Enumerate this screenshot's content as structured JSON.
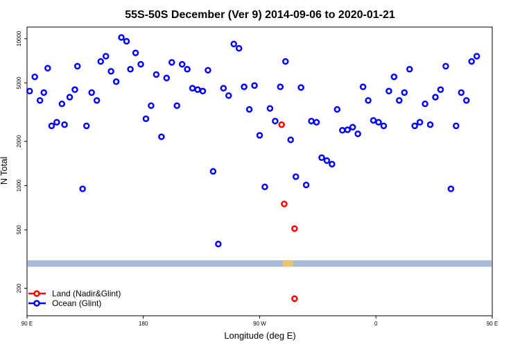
{
  "chart_data": {
    "type": "scatter",
    "title": "55S-50S December (Ver 9)   2014-09-06 to 2020-01-21",
    "xlabel": "Longitude (deg E)",
    "ylabel": "N Total",
    "y_scale": "log",
    "xlim": [
      90,
      450
    ],
    "ylim": [
      130,
      12000
    ],
    "x_ticks": [
      {
        "value": 90,
        "label": "90 E"
      },
      {
        "value": 180,
        "label": "180"
      },
      {
        "value": 270,
        "label": "90 W"
      },
      {
        "value": 360,
        "label": "0"
      },
      {
        "value": 450,
        "label": "90 E"
      },
      {
        "value": 540,
        "label": "180"
      }
    ],
    "y_ticks": [
      {
        "value": 200,
        "label": "200"
      },
      {
        "value": 500,
        "label": "500"
      },
      {
        "value": 1000,
        "label": "1000"
      },
      {
        "value": 2000,
        "label": "2000"
      },
      {
        "value": 5000,
        "label": "5000"
      },
      {
        "value": 10000,
        "label": "10000"
      }
    ],
    "legend_position": "bottom-left",
    "band": {
      "y_range": [
        280,
        310
      ],
      "color": "#a7bbd9",
      "highlight_color": "#f5c65e",
      "highlight_x": [
        288,
        296
      ]
    },
    "series": [
      {
        "name": "Land (Nadir&Glint)",
        "color": "#ff0000",
        "points": [
          [
            287,
            2600
          ],
          [
            289,
            750
          ],
          [
            297,
            510
          ],
          [
            297,
            170
          ]
        ]
      },
      {
        "name": "Ocean (Glint)",
        "color": "#0000ff",
        "points": [
          [
            92,
            4400
          ],
          [
            96,
            5500
          ],
          [
            100,
            3800
          ],
          [
            103,
            4300
          ],
          [
            106,
            6300
          ],
          [
            109,
            2550
          ],
          [
            113,
            2700
          ],
          [
            117,
            3600
          ],
          [
            119,
            2600
          ],
          [
            123,
            4000
          ],
          [
            127,
            4500
          ],
          [
            129,
            6500
          ],
          [
            133,
            950
          ],
          [
            136,
            2550
          ],
          [
            140,
            4300
          ],
          [
            144,
            3800
          ],
          [
            147,
            7000
          ],
          [
            151,
            7600
          ],
          [
            155,
            6000
          ],
          [
            159,
            5100
          ],
          [
            163,
            10200
          ],
          [
            167,
            9600
          ],
          [
            170,
            6200
          ],
          [
            174,
            8000
          ],
          [
            178,
            6700
          ],
          [
            182,
            2850
          ],
          [
            186,
            3500
          ],
          [
            190,
            5700
          ],
          [
            194,
            2150
          ],
          [
            198,
            5400
          ],
          [
            202,
            6900
          ],
          [
            206,
            3500
          ],
          [
            210,
            6700
          ],
          [
            214,
            6200
          ],
          [
            218,
            4600
          ],
          [
            222,
            4500
          ],
          [
            226,
            4400
          ],
          [
            230,
            6100
          ],
          [
            234,
            1250
          ],
          [
            238,
            400
          ],
          [
            242,
            4600
          ],
          [
            246,
            4100
          ],
          [
            250,
            9200
          ],
          [
            254,
            8600
          ],
          [
            258,
            4700
          ],
          [
            262,
            3300
          ],
          [
            266,
            4800
          ],
          [
            270,
            2200
          ],
          [
            274,
            980
          ],
          [
            278,
            3350
          ],
          [
            282,
            2750
          ],
          [
            286,
            4700
          ],
          [
            290,
            7000
          ],
          [
            294,
            2050
          ],
          [
            298,
            1150
          ],
          [
            302,
            4650
          ],
          [
            306,
            1010
          ],
          [
            310,
            2750
          ],
          [
            314,
            2700
          ],
          [
            318,
            1550
          ],
          [
            322,
            1480
          ],
          [
            326,
            1400
          ],
          [
            330,
            3300
          ],
          [
            334,
            2380
          ],
          [
            338,
            2400
          ],
          [
            342,
            2500
          ],
          [
            346,
            2250
          ],
          [
            350,
            4700
          ],
          [
            354,
            3800
          ],
          [
            358,
            2780
          ],
          [
            362,
            2700
          ],
          [
            366,
            2550
          ],
          [
            370,
            4400
          ],
          [
            374,
            5500
          ],
          [
            378,
            3800
          ],
          [
            382,
            4300
          ],
          [
            386,
            6200
          ],
          [
            390,
            2550
          ],
          [
            394,
            2700
          ],
          [
            398,
            3600
          ],
          [
            402,
            2600
          ],
          [
            406,
            4000
          ],
          [
            410,
            4500
          ],
          [
            414,
            6500
          ],
          [
            418,
            950
          ],
          [
            422,
            2550
          ],
          [
            426,
            4300
          ],
          [
            430,
            3800
          ],
          [
            434,
            7000
          ],
          [
            438,
            7600
          ]
        ]
      }
    ]
  }
}
